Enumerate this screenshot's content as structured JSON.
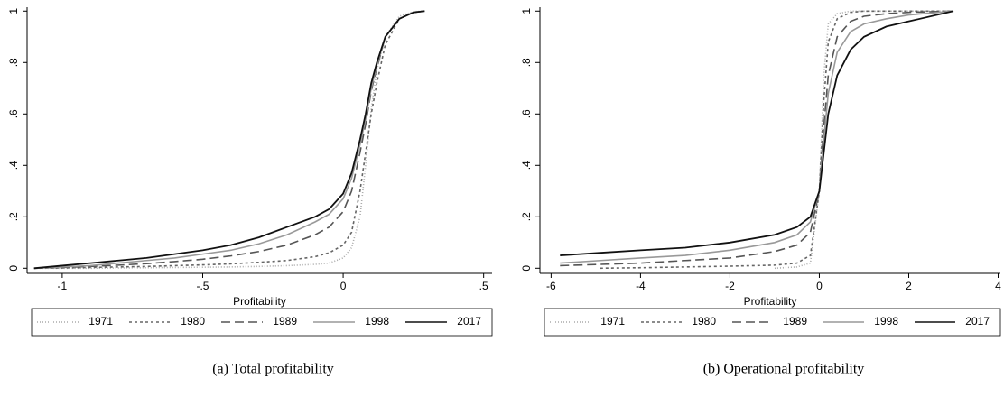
{
  "chart_data": [
    {
      "type": "line",
      "caption": "(a) Total profitability",
      "xlabel": "Profitability",
      "xlim": [
        -1.125,
        0.53
      ],
      "ylim": [
        -0.02,
        1.015
      ],
      "xticks": [
        -1,
        {
          "value": -0.5,
          "label": "-.5"
        },
        0,
        {
          "value": 0.5,
          "label": ".5"
        }
      ],
      "yticks": [
        0,
        {
          "value": 0.2,
          "label": ".2"
        },
        {
          "value": 0.4,
          "label": ".4"
        },
        {
          "value": 0.6,
          "label": ".6"
        },
        {
          "value": 0.8,
          "label": ".8"
        },
        1
      ],
      "x": [
        -1.1,
        -1.0,
        -0.9,
        -0.8,
        -0.7,
        -0.6,
        -0.5,
        -0.4,
        -0.3,
        -0.2,
        -0.1,
        -0.05,
        0,
        0.03,
        0.06,
        0.08,
        0.1,
        0.12,
        0.15,
        0.2,
        0.25,
        0.29
      ],
      "series": [
        {
          "name": "1971",
          "color": "#aaaaaa",
          "dash": "1,2",
          "values": [
            0,
            0,
            0,
            0.001,
            0.002,
            0.003,
            0.004,
            0.005,
            0.007,
            0.01,
            0.015,
            0.02,
            0.04,
            0.08,
            0.2,
            0.4,
            0.62,
            0.77,
            0.9,
            0.98,
            0.998,
            1
          ]
        },
        {
          "name": "1980",
          "color": "#666666",
          "dash": "3,3",
          "values": [
            0,
            0.001,
            0.003,
            0.005,
            0.007,
            0.01,
            0.013,
            0.017,
            0.023,
            0.03,
            0.045,
            0.06,
            0.09,
            0.14,
            0.3,
            0.45,
            0.6,
            0.72,
            0.87,
            0.97,
            0.995,
            1
          ]
        },
        {
          "name": "1989",
          "color": "#555555",
          "dash": "10,5",
          "values": [
            0,
            0.003,
            0.007,
            0.012,
            0.018,
            0.026,
            0.035,
            0.048,
            0.065,
            0.09,
            0.13,
            0.16,
            0.22,
            0.3,
            0.45,
            0.56,
            0.69,
            0.78,
            0.9,
            0.97,
            0.995,
            1
          ]
        },
        {
          "name": "1998",
          "color": "#999999",
          "dash": "none",
          "values": [
            0,
            0.005,
            0.01,
            0.02,
            0.03,
            0.04,
            0.055,
            0.07,
            0.095,
            0.13,
            0.18,
            0.21,
            0.27,
            0.35,
            0.48,
            0.58,
            0.7,
            0.79,
            0.9,
            0.97,
            0.995,
            1
          ]
        },
        {
          "name": "2017",
          "color": "#111111",
          "dash": "none",
          "values": [
            0,
            0.01,
            0.02,
            0.03,
            0.04,
            0.055,
            0.07,
            0.09,
            0.12,
            0.16,
            0.2,
            0.23,
            0.29,
            0.37,
            0.5,
            0.6,
            0.72,
            0.8,
            0.9,
            0.97,
            0.995,
            1
          ]
        }
      ]
    },
    {
      "type": "line",
      "caption": "(b) Operational profitability",
      "xlabel": "Profitability",
      "xlim": [
        -6.25,
        4.05
      ],
      "ylim": [
        -0.02,
        1.015
      ],
      "xticks": [
        -6,
        -4,
        -2,
        0,
        2,
        4
      ],
      "yticks": [
        0,
        {
          "value": 0.2,
          "label": ".2"
        },
        {
          "value": 0.4,
          "label": ".4"
        },
        {
          "value": 0.6,
          "label": ".6"
        },
        {
          "value": 0.8,
          "label": ".8"
        },
        1
      ],
      "x": [
        -5.8,
        -4.9,
        -4,
        -3,
        -2,
        -1,
        -0.5,
        -0.2,
        0,
        0.1,
        0.2,
        0.4,
        0.7,
        1,
        1.5,
        2,
        3
      ],
      "series": [
        {
          "name": "1971",
          "color": "#aaaaaa",
          "dash": "1,2",
          "values": [
            null,
            null,
            null,
            null,
            null,
            0,
            0.005,
            0.02,
            0.3,
            0.75,
            0.95,
            0.99,
            1,
            1,
            1,
            1,
            1
          ]
        },
        {
          "name": "1980",
          "color": "#666666",
          "dash": "3,3",
          "values": [
            null,
            0,
            0.002,
            0.005,
            0.008,
            0.012,
            0.02,
            0.05,
            0.3,
            0.65,
            0.88,
            0.97,
            0.995,
            1,
            1,
            1,
            1
          ]
        },
        {
          "name": "1989",
          "color": "#555555",
          "dash": "10,5",
          "values": [
            0.01,
            0.015,
            0.02,
            0.03,
            0.04,
            0.065,
            0.09,
            0.14,
            0.3,
            0.55,
            0.75,
            0.9,
            0.96,
            0.98,
            0.99,
            0.995,
            1
          ]
        },
        {
          "name": "1998",
          "color": "#999999",
          "dash": "none",
          "values": [
            0.02,
            0.03,
            0.04,
            0.05,
            0.07,
            0.1,
            0.13,
            0.18,
            0.3,
            0.5,
            0.68,
            0.84,
            0.92,
            0.95,
            0.97,
            0.985,
            1
          ]
        },
        {
          "name": "2017",
          "color": "#111111",
          "dash": "none",
          "values": [
            0.05,
            0.06,
            0.07,
            0.08,
            0.1,
            0.13,
            0.16,
            0.2,
            0.3,
            0.45,
            0.6,
            0.75,
            0.85,
            0.9,
            0.94,
            0.96,
            1
          ]
        }
      ]
    }
  ]
}
